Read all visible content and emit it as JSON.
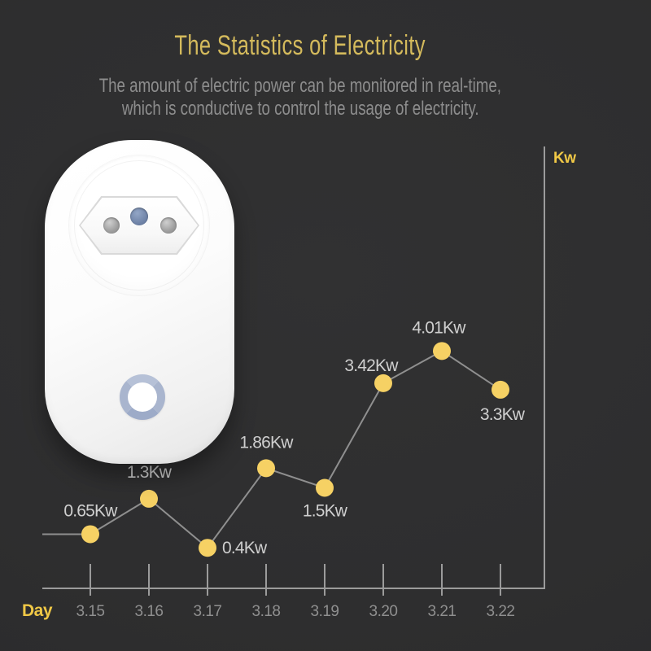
{
  "header": {
    "title": "The Statistics of Electricity",
    "subtitle_line1": "The amount of electric power can be monitored in real-time,",
    "subtitle_line2": "which is conductive to control the usage of electricity."
  },
  "device": {
    "description": "white smart plug socket with round face, three pin holes and circular power button"
  },
  "colors": {
    "background": "#2e2e2f",
    "title": "#d4ba5c",
    "subtitle": "#8d8d8d",
    "accent_yellow": "#f0c846",
    "dot_yellow": "#f6d164",
    "series_line": "#8f8f8f",
    "axis": "#9b9b9b",
    "tick_label": "#8f8f8f",
    "data_label": "#cfcfcf",
    "button_ring": "#a9b5ce",
    "earth_hole": "#6e82a6"
  },
  "chart_data": {
    "type": "line",
    "title": "",
    "xlabel": "Day",
    "ylabel": "Kw",
    "categories": [
      "3.15",
      "3.16",
      "3.17",
      "3.18",
      "3.19",
      "3.20",
      "3.21",
      "3.22"
    ],
    "values": [
      0.65,
      1.3,
      0.4,
      1.86,
      1.5,
      3.42,
      4.01,
      3.3
    ],
    "point_labels": [
      "0.65Kw",
      "1.3Kw",
      "0.4Kw",
      "1.86Kw",
      "1.5Kw",
      "3.42Kw",
      "4.01Kw",
      "3.3Kw"
    ],
    "label_pos": [
      "above",
      "above",
      "right",
      "above",
      "below",
      "above",
      "above",
      "below"
    ],
    "label_dx": [
      0,
      0,
      0,
      0,
      0,
      -15,
      -4,
      2
    ],
    "label_dy": [
      0,
      -4,
      0,
      -3,
      0,
      7,
      0,
      2
    ],
    "ylim": [
      0,
      4.5
    ],
    "grid": false,
    "legend": "none",
    "y_axis_side": "right",
    "y_label_position": "top"
  }
}
